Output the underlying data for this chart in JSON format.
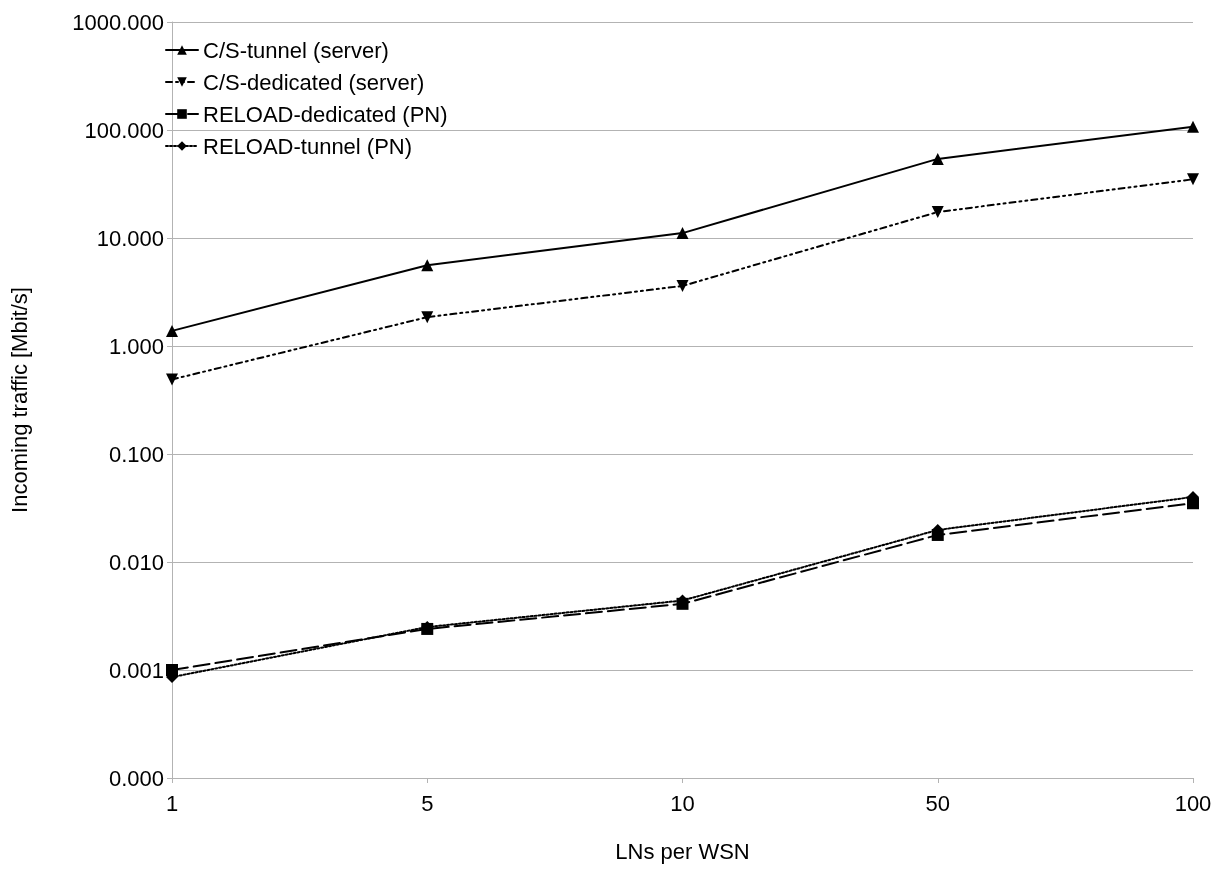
{
  "chart_data": {
    "type": "line",
    "xlabel": "LNs per WSN",
    "ylabel": "Incoming traffic [Mbit/s]",
    "categories": [
      "1",
      "5",
      "10",
      "50",
      "100"
    ],
    "log": "y",
    "grid": "y",
    "legend": "top left",
    "ylim": [
      0.0001,
      1000
    ],
    "yticks": [
      {
        "value": 0.0001,
        "label": "0.000"
      },
      {
        "value": 0.001,
        "label": "0.001"
      },
      {
        "value": 0.01,
        "label": "0.010"
      },
      {
        "value": 0.1,
        "label": "0.100"
      },
      {
        "value": 1,
        "label": "1.000"
      },
      {
        "value": 10,
        "label": "10.000"
      },
      {
        "value": 100,
        "label": "100.000"
      },
      {
        "value": 1000,
        "label": "1000.000"
      }
    ],
    "series": [
      {
        "name": "C/S-tunnel (server)",
        "color": "#000000",
        "marker": "triangle",
        "line_style": "solid",
        "values": [
          1.38,
          5.6,
          11.1,
          54,
          107
        ]
      },
      {
        "name": "C/S-dedicated (server)",
        "color": "#000000",
        "marker": "triangle-down",
        "line_style": "dashdot",
        "values": [
          0.49,
          1.85,
          3.6,
          17.4,
          35
        ]
      },
      {
        "name": "RELOAD-dedicated (PN)",
        "color": "#000000",
        "marker": "square",
        "line_style": "dashed",
        "values": [
          0.001,
          0.0024,
          0.0041,
          0.0178,
          0.035
        ]
      },
      {
        "name": "RELOAD-tunnel (PN)",
        "color": "#000000",
        "marker": "diamond",
        "line_style": "dotted",
        "values": [
          0.00086,
          0.0025,
          0.0044,
          0.0198,
          0.04
        ]
      }
    ]
  }
}
